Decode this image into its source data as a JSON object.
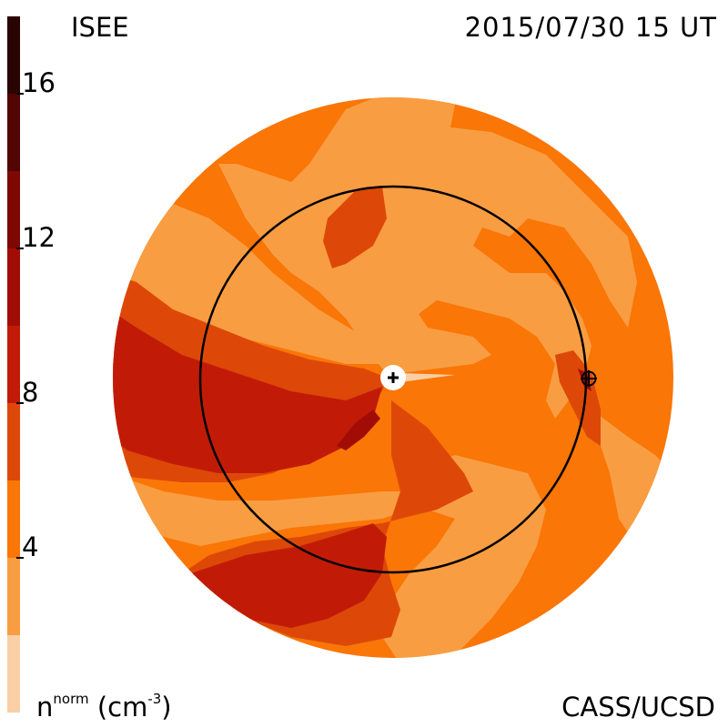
{
  "header": {
    "org": "ISEE",
    "datetime": "2015/07/30 15 UT"
  },
  "footer": {
    "credit": "CASS/UCSD",
    "unit_base": "n",
    "unit_norm": "norm",
    "unit_paren_open": "(cm",
    "unit_exp": "-3",
    "unit_paren_close": ")"
  },
  "colorbar": {
    "tick_labels": [
      "16",
      "12",
      "8",
      "4"
    ],
    "tick_values": [
      16,
      12,
      8,
      4
    ],
    "range": [
      0,
      18
    ],
    "level_bounds": [
      0,
      2,
      4,
      6,
      8,
      10,
      12,
      14,
      16,
      18
    ],
    "level_colors": [
      "#f9cfa6",
      "#f99d42",
      "#f97607",
      "#dd4808",
      "#c11b08",
      "#a10d06",
      "#7c0904",
      "#520502",
      "#2a0401"
    ]
  },
  "map": {
    "outer_color": "#f97607",
    "markers": {
      "sun": "plus-icon",
      "earth": "circled-plus-icon"
    }
  }
}
